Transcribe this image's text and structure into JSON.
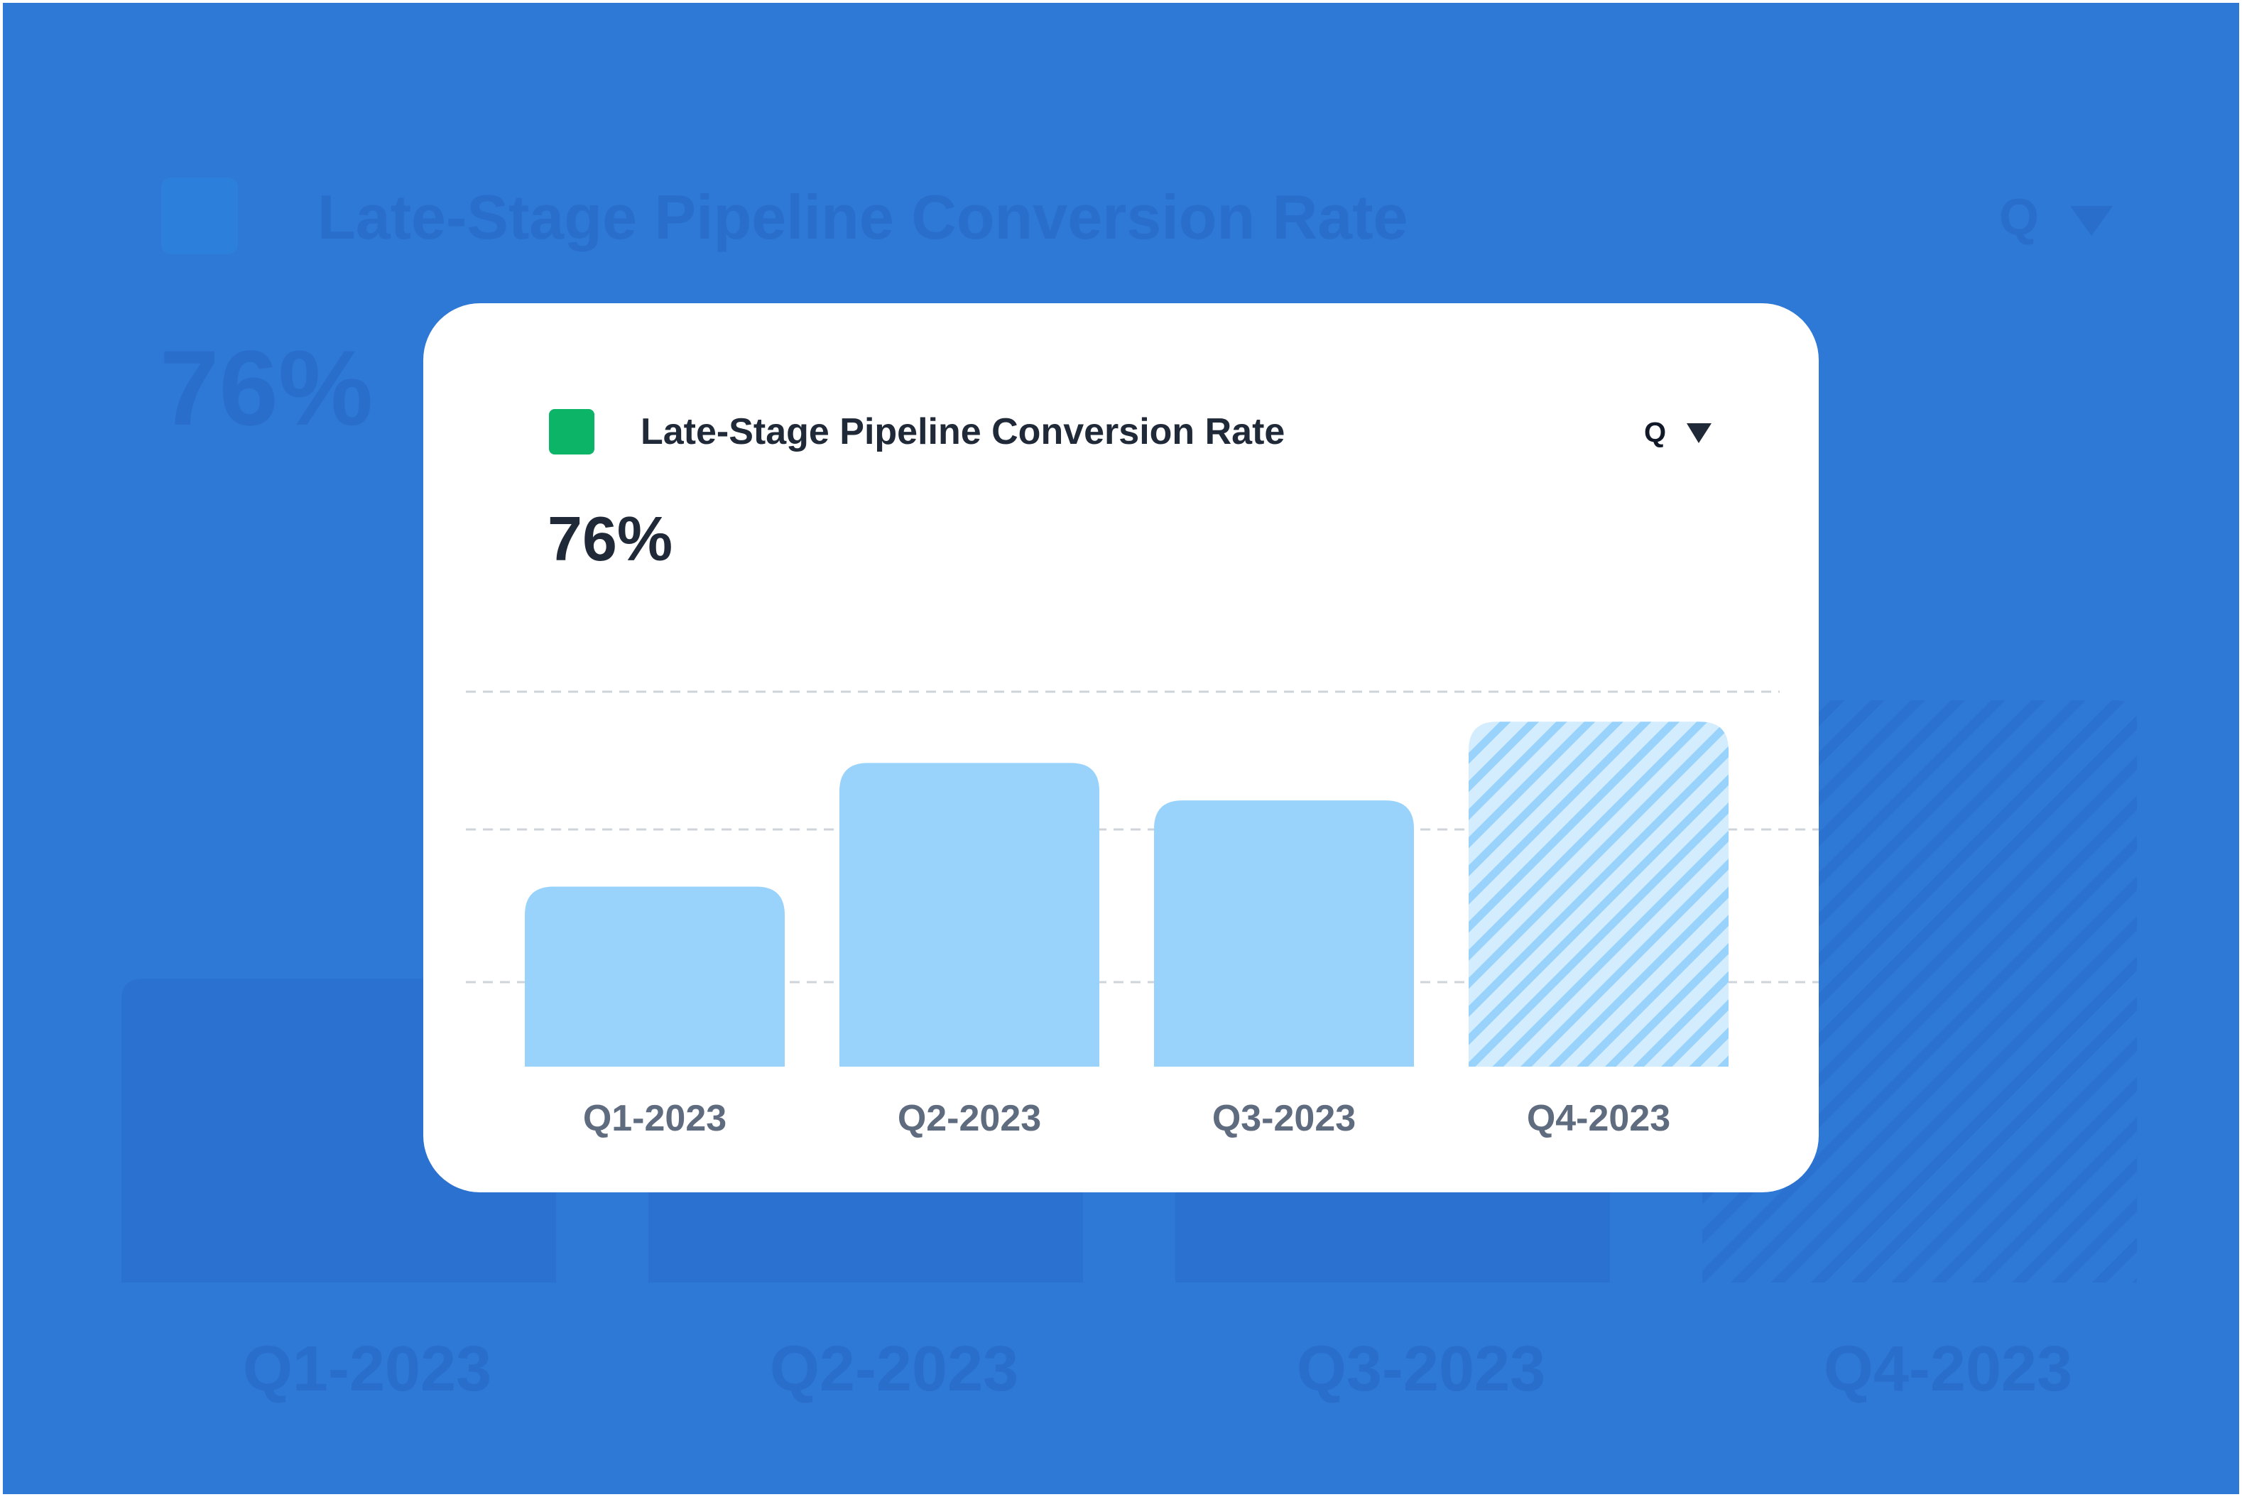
{
  "chart_data": {
    "type": "bar",
    "title": "Late-Stage Pipeline Conversion Rate",
    "headline": "76%",
    "period": "Q",
    "categories": [
      "Q1-2023",
      "Q2-2023",
      "Q3-2023",
      "Q4-2023"
    ],
    "values": [
      48,
      81,
      71,
      92
    ],
    "ylim": [
      0,
      100
    ],
    "color": "#99d3fc",
    "patterns": [
      "solid",
      "solid",
      "solid",
      "hatched"
    ]
  }
}
